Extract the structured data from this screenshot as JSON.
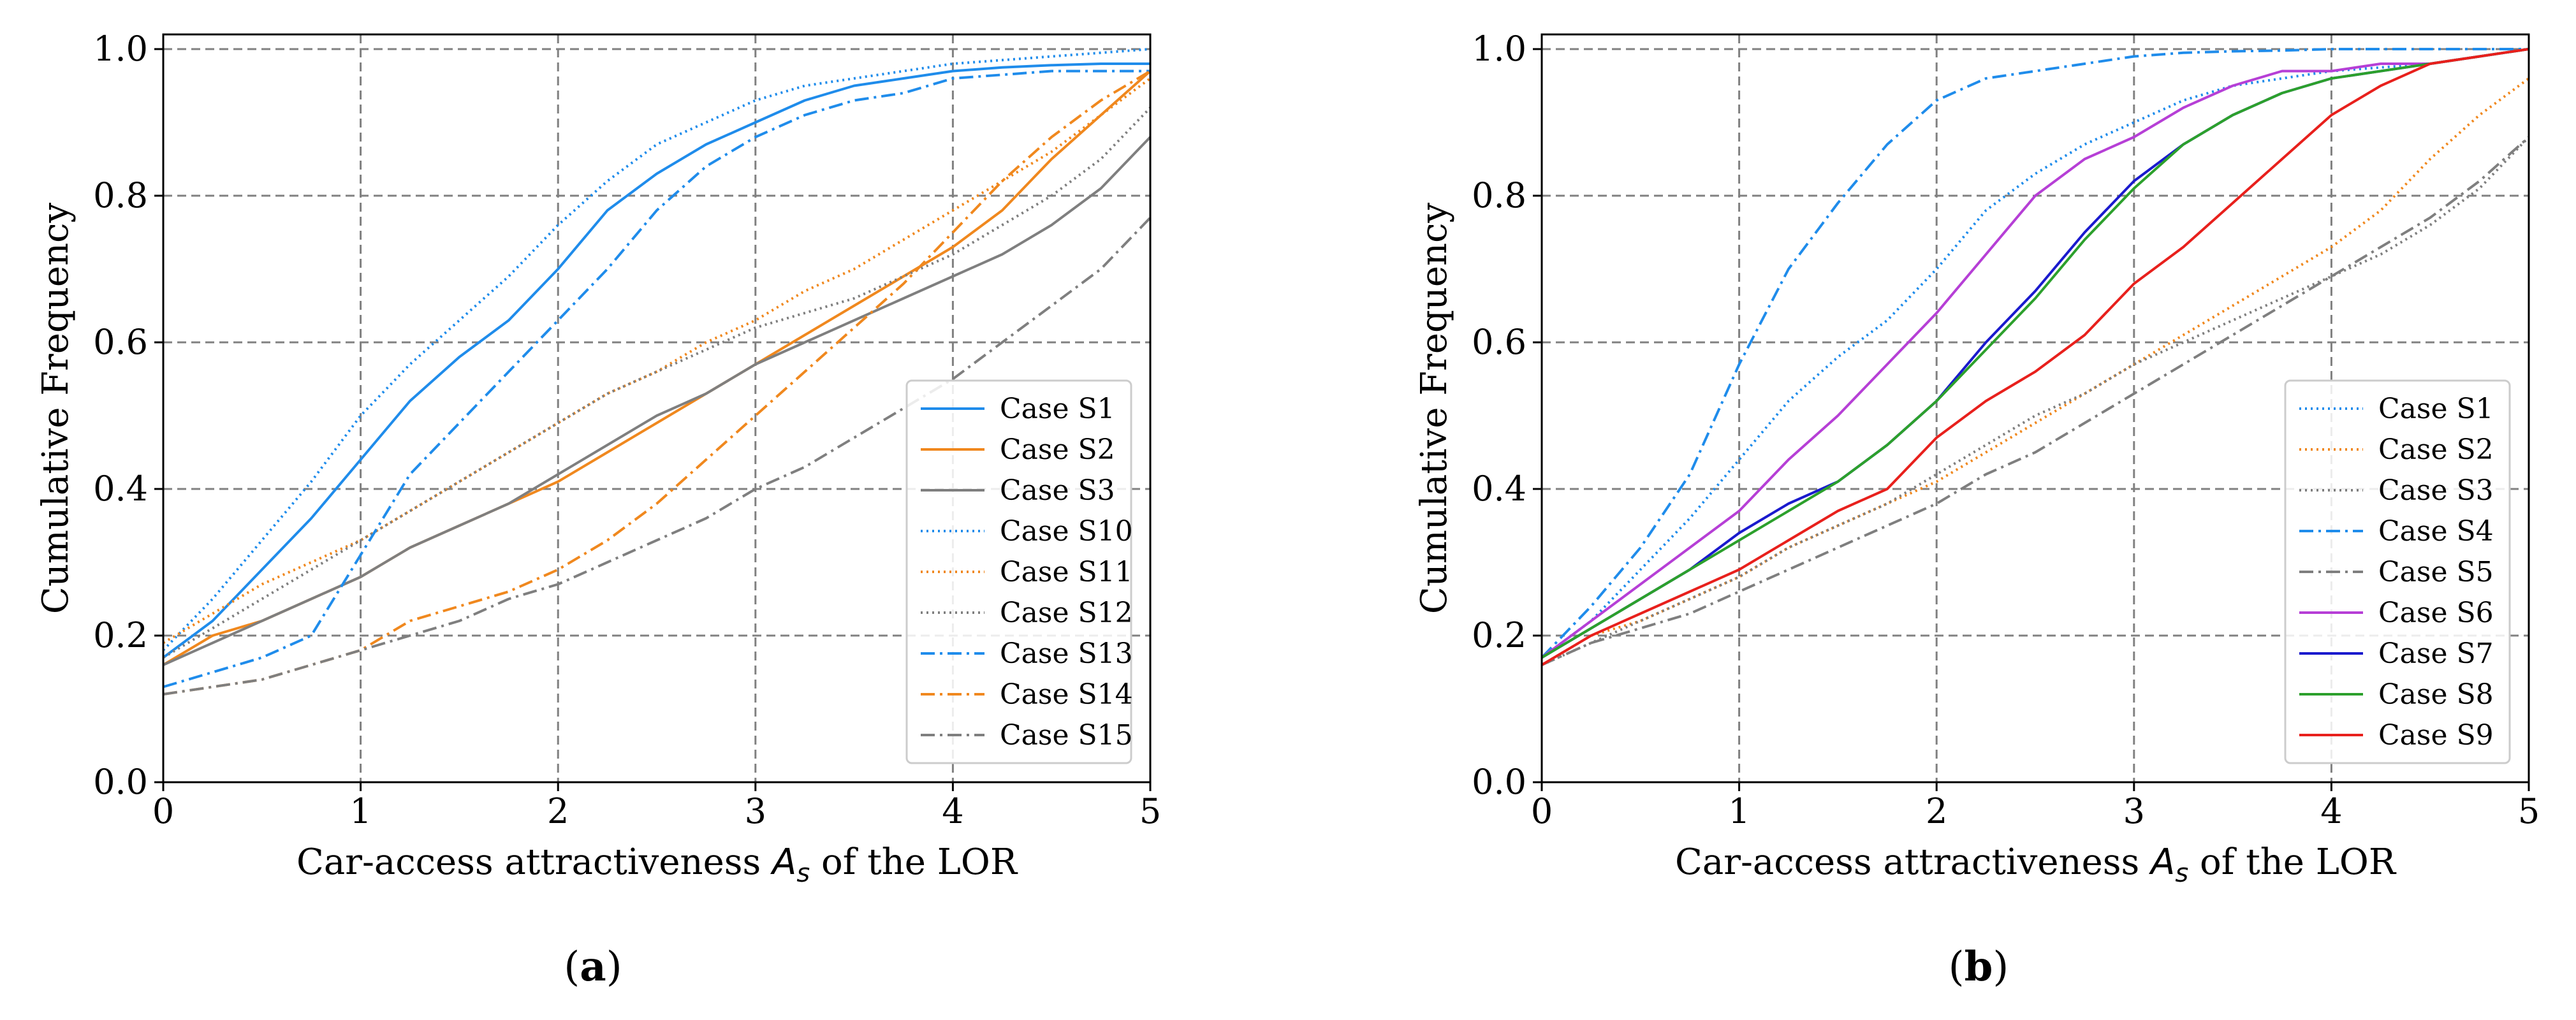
{
  "chart_data": [
    {
      "type": "line",
      "panel_label": "a",
      "xlabel_prefix": "Car-access attractiveness ",
      "xlabel_symbol": "A",
      "xlabel_sub": "s",
      "xlabel_suffix": " of the LOR",
      "ylabel": "Cumulative Frequency",
      "xlim": [
        0,
        5
      ],
      "ylim": [
        0,
        1.02
      ],
      "xticks": [
        0,
        1,
        2,
        3,
        4,
        5
      ],
      "yticks": [
        0.0,
        0.2,
        0.4,
        0.6,
        0.8,
        1.0
      ],
      "xtick_labels": [
        "0",
        "1",
        "2",
        "3",
        "4",
        "5"
      ],
      "ytick_labels": [
        "0.0",
        "0.2",
        "0.4",
        "0.6",
        "0.8",
        "1.0"
      ],
      "grid": true,
      "legend_position": "lower-right",
      "series": [
        {
          "name": "Case S1",
          "color": "#1f8ceb",
          "style": "solid",
          "x": [
            0,
            0.25,
            0.5,
            0.75,
            1.0,
            1.25,
            1.5,
            1.75,
            2.0,
            2.25,
            2.5,
            2.75,
            3.0,
            3.25,
            3.5,
            3.75,
            4.0,
            4.25,
            4.5,
            4.75,
            5.0
          ],
          "y": [
            0.17,
            0.22,
            0.29,
            0.36,
            0.44,
            0.52,
            0.58,
            0.63,
            0.7,
            0.78,
            0.83,
            0.87,
            0.9,
            0.93,
            0.95,
            0.96,
            0.97,
            0.975,
            0.978,
            0.98,
            0.98
          ]
        },
        {
          "name": "Case S2",
          "color": "#f0881e",
          "style": "solid",
          "x": [
            0,
            0.25,
            0.5,
            0.75,
            1.0,
            1.25,
            1.5,
            1.75,
            2.0,
            2.25,
            2.5,
            2.75,
            3.0,
            3.25,
            3.5,
            3.75,
            4.0,
            4.25,
            4.5,
            4.75,
            5.0
          ],
          "y": [
            0.16,
            0.2,
            0.22,
            0.25,
            0.28,
            0.32,
            0.35,
            0.38,
            0.41,
            0.45,
            0.49,
            0.53,
            0.57,
            0.61,
            0.65,
            0.69,
            0.73,
            0.78,
            0.85,
            0.91,
            0.97
          ]
        },
        {
          "name": "Case S3",
          "color": "#7f7f7f",
          "style": "solid",
          "x": [
            0,
            0.25,
            0.5,
            0.75,
            1.0,
            1.25,
            1.5,
            1.75,
            2.0,
            2.25,
            2.5,
            2.75,
            3.0,
            3.25,
            3.5,
            3.75,
            4.0,
            4.25,
            4.5,
            4.75,
            5.0
          ],
          "y": [
            0.16,
            0.19,
            0.22,
            0.25,
            0.28,
            0.32,
            0.35,
            0.38,
            0.42,
            0.46,
            0.5,
            0.53,
            0.57,
            0.6,
            0.63,
            0.66,
            0.69,
            0.72,
            0.76,
            0.81,
            0.88
          ]
        },
        {
          "name": "Case S10",
          "color": "#1f8ceb",
          "style": "dotted",
          "x": [
            0,
            0.25,
            0.5,
            0.75,
            1.0,
            1.25,
            1.5,
            1.75,
            2.0,
            2.25,
            2.5,
            2.75,
            3.0,
            3.25,
            3.5,
            3.75,
            4.0,
            4.25,
            4.5,
            4.75,
            5.0
          ],
          "y": [
            0.18,
            0.25,
            0.33,
            0.41,
            0.5,
            0.57,
            0.63,
            0.69,
            0.76,
            0.82,
            0.87,
            0.9,
            0.93,
            0.95,
            0.96,
            0.97,
            0.98,
            0.985,
            0.99,
            0.995,
            1.0
          ]
        },
        {
          "name": "Case S11",
          "color": "#f0881e",
          "style": "dotted",
          "x": [
            0,
            0.25,
            0.5,
            0.75,
            1.0,
            1.25,
            1.5,
            1.75,
            2.0,
            2.25,
            2.5,
            2.75,
            3.0,
            3.25,
            3.5,
            3.75,
            4.0,
            4.25,
            4.5,
            4.75,
            5.0
          ],
          "y": [
            0.19,
            0.23,
            0.27,
            0.3,
            0.33,
            0.37,
            0.41,
            0.45,
            0.49,
            0.53,
            0.56,
            0.6,
            0.63,
            0.67,
            0.7,
            0.74,
            0.78,
            0.82,
            0.86,
            0.91,
            0.96
          ]
        },
        {
          "name": "Case S12",
          "color": "#7f7f7f",
          "style": "dotted",
          "x": [
            0,
            0.25,
            0.5,
            0.75,
            1.0,
            1.25,
            1.5,
            1.75,
            2.0,
            2.25,
            2.5,
            2.75,
            3.0,
            3.25,
            3.5,
            3.75,
            4.0,
            4.25,
            4.5,
            4.75,
            5.0
          ],
          "y": [
            0.17,
            0.21,
            0.25,
            0.29,
            0.33,
            0.37,
            0.41,
            0.45,
            0.49,
            0.53,
            0.56,
            0.59,
            0.62,
            0.64,
            0.66,
            0.69,
            0.72,
            0.76,
            0.8,
            0.85,
            0.92
          ]
        },
        {
          "name": "Case S13",
          "color": "#1f8ceb",
          "style": "dashdot",
          "x": [
            0,
            0.25,
            0.5,
            0.75,
            1.0,
            1.25,
            1.5,
            1.75,
            2.0,
            2.25,
            2.5,
            2.75,
            3.0,
            3.25,
            3.5,
            3.75,
            4.0,
            4.25,
            4.5,
            4.75,
            5.0
          ],
          "y": [
            0.13,
            0.15,
            0.17,
            0.2,
            0.31,
            0.42,
            0.49,
            0.56,
            0.63,
            0.7,
            0.78,
            0.84,
            0.88,
            0.91,
            0.93,
            0.94,
            0.96,
            0.965,
            0.97,
            0.97,
            0.97
          ]
        },
        {
          "name": "Case S14",
          "color": "#f0881e",
          "style": "dashdot",
          "x": [
            0,
            0.25,
            0.5,
            0.75,
            1.0,
            1.25,
            1.5,
            1.75,
            2.0,
            2.25,
            2.5,
            2.75,
            3.0,
            3.25,
            3.5,
            3.75,
            4.0,
            4.25,
            4.5,
            4.75,
            5.0
          ],
          "y": [
            0.12,
            0.13,
            0.14,
            0.16,
            0.18,
            0.22,
            0.24,
            0.26,
            0.29,
            0.33,
            0.38,
            0.44,
            0.5,
            0.56,
            0.62,
            0.68,
            0.75,
            0.82,
            0.88,
            0.93,
            0.97
          ]
        },
        {
          "name": "Case S15",
          "color": "#7f7f7f",
          "style": "dashdot",
          "x": [
            0,
            0.25,
            0.5,
            0.75,
            1.0,
            1.25,
            1.5,
            1.75,
            2.0,
            2.25,
            2.5,
            2.75,
            3.0,
            3.25,
            3.5,
            3.75,
            4.0,
            4.25,
            4.5,
            4.75,
            5.0
          ],
          "y": [
            0.12,
            0.13,
            0.14,
            0.16,
            0.18,
            0.2,
            0.22,
            0.25,
            0.27,
            0.3,
            0.33,
            0.36,
            0.4,
            0.43,
            0.47,
            0.51,
            0.55,
            0.6,
            0.65,
            0.7,
            0.77
          ]
        }
      ]
    },
    {
      "type": "line",
      "panel_label": "b",
      "xlabel_prefix": "Car-access attractiveness ",
      "xlabel_symbol": "A",
      "xlabel_sub": "s",
      "xlabel_suffix": " of the LOR",
      "ylabel": "Cumulative Frequency",
      "xlim": [
        0,
        5
      ],
      "ylim": [
        0,
        1.02
      ],
      "xticks": [
        0,
        1,
        2,
        3,
        4,
        5
      ],
      "yticks": [
        0.0,
        0.2,
        0.4,
        0.6,
        0.8,
        1.0
      ],
      "xtick_labels": [
        "0",
        "1",
        "2",
        "3",
        "4",
        "5"
      ],
      "ytick_labels": [
        "0.0",
        "0.2",
        "0.4",
        "0.6",
        "0.8",
        "1.0"
      ],
      "grid": true,
      "legend_position": "lower-right",
      "series": [
        {
          "name": "Case S1",
          "color": "#1f8ceb",
          "style": "dotted",
          "x": [
            0,
            0.25,
            0.5,
            0.75,
            1.0,
            1.25,
            1.5,
            1.75,
            2.0,
            2.25,
            2.5,
            2.75,
            3.0,
            3.25,
            3.5,
            3.75,
            4.0,
            4.25,
            4.5,
            4.75,
            5.0
          ],
          "y": [
            0.17,
            0.22,
            0.29,
            0.36,
            0.44,
            0.52,
            0.58,
            0.63,
            0.7,
            0.78,
            0.83,
            0.87,
            0.9,
            0.93,
            0.95,
            0.96,
            0.97,
            0.975,
            0.98,
            0.99,
            1.0
          ]
        },
        {
          "name": "Case S2",
          "color": "#f0881e",
          "style": "dotted",
          "x": [
            0,
            0.25,
            0.5,
            0.75,
            1.0,
            1.25,
            1.5,
            1.75,
            2.0,
            2.25,
            2.5,
            2.75,
            3.0,
            3.25,
            3.5,
            3.75,
            4.0,
            4.25,
            4.5,
            4.75,
            5.0
          ],
          "y": [
            0.16,
            0.2,
            0.22,
            0.25,
            0.28,
            0.32,
            0.35,
            0.38,
            0.41,
            0.45,
            0.49,
            0.53,
            0.57,
            0.61,
            0.65,
            0.69,
            0.73,
            0.78,
            0.85,
            0.91,
            0.96
          ]
        },
        {
          "name": "Case S3",
          "color": "#7f7f7f",
          "style": "dotted",
          "x": [
            0,
            0.25,
            0.5,
            0.75,
            1.0,
            1.25,
            1.5,
            1.75,
            2.0,
            2.25,
            2.5,
            2.75,
            3.0,
            3.25,
            3.5,
            3.75,
            4.0,
            4.25,
            4.5,
            4.75,
            5.0
          ],
          "y": [
            0.16,
            0.19,
            0.22,
            0.25,
            0.28,
            0.32,
            0.35,
            0.38,
            0.42,
            0.46,
            0.5,
            0.53,
            0.57,
            0.6,
            0.63,
            0.66,
            0.69,
            0.72,
            0.76,
            0.81,
            0.88
          ]
        },
        {
          "name": "Case S4",
          "color": "#1f8ceb",
          "style": "dashdot",
          "x": [
            0,
            0.25,
            0.5,
            0.75,
            1.0,
            1.25,
            1.5,
            1.75,
            2.0,
            2.25,
            2.5,
            2.75,
            3.0,
            3.25,
            3.5,
            3.75,
            4.0,
            4.25,
            4.5,
            4.75,
            5.0
          ],
          "y": [
            0.17,
            0.24,
            0.32,
            0.42,
            0.57,
            0.7,
            0.79,
            0.87,
            0.93,
            0.96,
            0.97,
            0.98,
            0.99,
            0.995,
            0.997,
            0.998,
            1.0,
            1.0,
            1.0,
            1.0,
            1.0
          ]
        },
        {
          "name": "Case S5",
          "color": "#7f7f7f",
          "style": "dashdot",
          "x": [
            0,
            0.25,
            0.5,
            0.75,
            1.0,
            1.25,
            1.5,
            1.75,
            2.0,
            2.25,
            2.5,
            2.75,
            3.0,
            3.25,
            3.5,
            3.75,
            4.0,
            4.25,
            4.5,
            4.75,
            5.0
          ],
          "y": [
            0.16,
            0.19,
            0.21,
            0.23,
            0.26,
            0.29,
            0.32,
            0.35,
            0.38,
            0.42,
            0.45,
            0.49,
            0.53,
            0.57,
            0.61,
            0.65,
            0.69,
            0.73,
            0.77,
            0.82,
            0.88
          ]
        },
        {
          "name": "Case S6",
          "color": "#b63fd6",
          "style": "solid",
          "x": [
            0,
            0.25,
            0.5,
            0.75,
            1.0,
            1.25,
            1.5,
            1.75,
            2.0,
            2.25,
            2.5,
            2.75,
            3.0,
            3.25,
            3.5,
            3.75,
            4.0,
            4.25,
            4.5,
            4.75,
            5.0
          ],
          "y": [
            0.17,
            0.22,
            0.27,
            0.32,
            0.37,
            0.44,
            0.5,
            0.57,
            0.64,
            0.72,
            0.8,
            0.85,
            0.88,
            0.92,
            0.95,
            0.97,
            0.97,
            0.98,
            0.98,
            0.99,
            1.0
          ]
        },
        {
          "name": "Case S7",
          "color": "#1a1acd",
          "style": "solid",
          "x": [
            0,
            0.25,
            0.5,
            0.75,
            1.0,
            1.25,
            1.5,
            1.75,
            2.0,
            2.25,
            2.5,
            2.75,
            3.0,
            3.25,
            3.5,
            3.75,
            4.0,
            4.25,
            4.5,
            4.75,
            5.0
          ],
          "y": [
            0.17,
            0.21,
            0.25,
            0.29,
            0.34,
            0.38,
            0.41,
            0.46,
            0.52,
            0.6,
            0.67,
            0.75,
            0.82,
            0.87,
            0.91,
            0.94,
            0.96,
            0.97,
            0.98,
            0.99,
            1.0
          ]
        },
        {
          "name": "Case S8",
          "color": "#2ca02c",
          "style": "solid",
          "x": [
            0,
            0.25,
            0.5,
            0.75,
            1.0,
            1.25,
            1.5,
            1.75,
            2.0,
            2.25,
            2.5,
            2.75,
            3.0,
            3.25,
            3.5,
            3.75,
            4.0,
            4.25,
            4.5,
            4.75,
            5.0
          ],
          "y": [
            0.17,
            0.21,
            0.25,
            0.29,
            0.33,
            0.37,
            0.41,
            0.46,
            0.52,
            0.59,
            0.66,
            0.74,
            0.81,
            0.87,
            0.91,
            0.94,
            0.96,
            0.97,
            0.98,
            0.99,
            1.0
          ]
        },
        {
          "name": "Case S9",
          "color": "#e8201c",
          "style": "solid",
          "x": [
            0,
            0.25,
            0.5,
            0.75,
            1.0,
            1.25,
            1.5,
            1.75,
            2.0,
            2.25,
            2.5,
            2.75,
            3.0,
            3.25,
            3.5,
            3.75,
            4.0,
            4.25,
            4.5,
            4.75,
            5.0
          ],
          "y": [
            0.16,
            0.2,
            0.23,
            0.26,
            0.29,
            0.33,
            0.37,
            0.4,
            0.47,
            0.52,
            0.56,
            0.61,
            0.68,
            0.73,
            0.79,
            0.85,
            0.91,
            0.95,
            0.98,
            0.99,
            1.0
          ]
        }
      ]
    }
  ]
}
